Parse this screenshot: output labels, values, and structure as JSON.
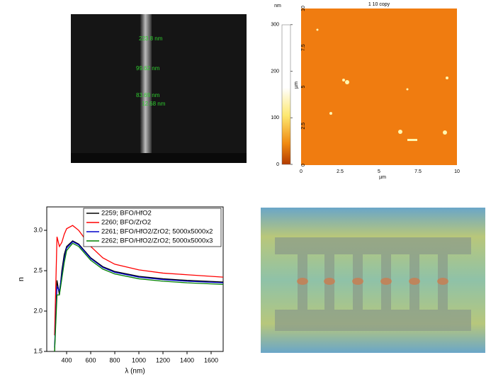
{
  "sem": {
    "labels": [
      "223.8 nm",
      "99.62 nm",
      "83.69 nm",
      "12.68 nm"
    ]
  },
  "afm": {
    "title": "1 10 copy",
    "colorbar_unit": "nm",
    "colorbar_lim": [
      0,
      330
    ],
    "colorbar_ticks": [
      0,
      100,
      200,
      300
    ],
    "axis_label": "µm",
    "lim": [
      0,
      10
    ],
    "ticks": [
      0,
      2.5,
      5,
      7.5,
      10
    ]
  },
  "chart_data": {
    "type": "line",
    "xlabel": "λ (nm)",
    "ylabel": "n",
    "x": [
      300,
      320,
      340,
      360,
      380,
      400,
      450,
      500,
      600,
      700,
      800,
      1000,
      1200,
      1400,
      1700
    ],
    "series": [
      {
        "name": "2259; BFO/HfO2",
        "color": "#000000",
        "values": [
          1.5,
          2.38,
          2.2,
          2.5,
          2.7,
          2.8,
          2.87,
          2.83,
          2.66,
          2.55,
          2.49,
          2.43,
          2.4,
          2.38,
          2.36
        ]
      },
      {
        "name": "2260; BFO/ZrO2",
        "color": "#ff0000",
        "values": [
          1.7,
          2.92,
          2.8,
          2.85,
          2.95,
          3.02,
          3.06,
          3.0,
          2.8,
          2.66,
          2.58,
          2.51,
          2.47,
          2.45,
          2.42
        ]
      },
      {
        "name": "2261; BFO/HfO2/ZrO2; 5000x5000x2",
        "color": "#0000cc",
        "values": [
          1.55,
          2.3,
          2.25,
          2.45,
          2.65,
          2.78,
          2.86,
          2.82,
          2.65,
          2.54,
          2.48,
          2.42,
          2.39,
          2.37,
          2.35
        ]
      },
      {
        "name": "2262; BFO/HfO2/ZrO2; 5000x5000x3",
        "color": "#008000",
        "values": [
          1.5,
          2.2,
          2.2,
          2.4,
          2.6,
          2.75,
          2.84,
          2.8,
          2.63,
          2.52,
          2.46,
          2.4,
          2.37,
          2.35,
          2.33
        ]
      }
    ],
    "xlim": [
      235,
      1700
    ],
    "xticks": [
      400,
      600,
      800,
      1000,
      1200,
      1400,
      1600
    ],
    "ylim": [
      1.5,
      3.29
    ],
    "yticks": [
      {
        "value": 1.5,
        "label": "1.5"
      },
      {
        "value": 2,
        "label": "2.0"
      },
      {
        "value": 2.5,
        "label": "2.5"
      },
      {
        "value": 3,
        "label": "3.0"
      }
    ],
    "legend": "upper-right"
  }
}
